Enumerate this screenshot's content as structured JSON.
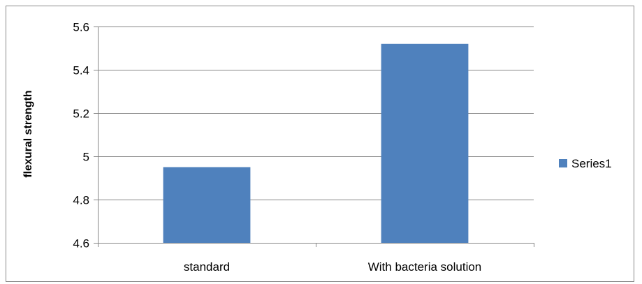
{
  "chart_data": {
    "type": "bar",
    "categories": [
      "standard",
      "With bacteria solution"
    ],
    "series": [
      {
        "name": "Series1",
        "values": [
          4.95,
          5.52
        ],
        "color": "#4f81bd"
      }
    ],
    "ylabel": "flexural strength",
    "xlabel": "",
    "ylim": [
      4.6,
      5.6
    ],
    "yticks": [
      4.6,
      4.8,
      5,
      5.2,
      5.4,
      5.6
    ],
    "ytick_labels": [
      "4.6",
      "4.8",
      "5",
      "5.2",
      "5.4",
      "5.6"
    ],
    "grid": true,
    "legend_position": "right",
    "gridline_color": "#868686"
  }
}
